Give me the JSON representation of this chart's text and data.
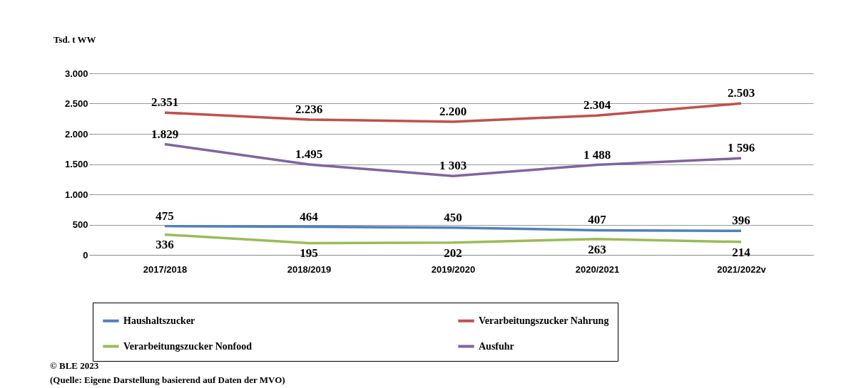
{
  "chart_data": {
    "type": "line",
    "ylabel": "Tsd. t WW",
    "categories": [
      "2017/2018",
      "2018/2019",
      "2019/2020",
      "2020/2021",
      "2021/2022v"
    ],
    "series": [
      {
        "name": "Haushaltszucker",
        "color": "#4f81bd",
        "values": [
          475,
          464,
          450,
          407,
          396
        ],
        "value_labels": [
          "475",
          "464",
          "450",
          "407",
          "396"
        ]
      },
      {
        "name": "Verarbeitungszucker Nahrung",
        "color": "#c0504d",
        "values": [
          2351,
          2236,
          2200,
          2304,
          2503
        ],
        "value_labels": [
          "2.351",
          "2.236",
          "2.200",
          "2.304",
          "2.503"
        ]
      },
      {
        "name": "Verarbeitungszucker Nonfood",
        "color": "#9bbb59",
        "values": [
          336,
          195,
          202,
          263,
          214
        ],
        "value_labels": [
          "336",
          "195",
          "202",
          "263",
          "214"
        ]
      },
      {
        "name": "Ausfuhr",
        "color": "#8064a2",
        "values": [
          1829,
          1495,
          1303,
          1488,
          1596
        ],
        "value_labels": [
          "1.829",
          "1.495",
          "1 303",
          "1 488",
          "1 596"
        ]
      }
    ],
    "ylim": [
      0,
      3000
    ],
    "yticks": [
      {
        "value": 0,
        "label": "0"
      },
      {
        "value": 500,
        "label": "500"
      },
      {
        "value": 1000,
        "label": "1.000"
      },
      {
        "value": 1500,
        "label": "1.500"
      },
      {
        "value": 2000,
        "label": "2.000"
      },
      {
        "value": 2500,
        "label": "2.500"
      },
      {
        "value": 3000,
        "label": "3.000"
      }
    ],
    "grid": "y",
    "legend": "bottom",
    "marker": "none",
    "line_style": "solid",
    "annotations": [
      "© BLE 2023",
      "(Quelle: Eigene Darstellung  basierend auf Daten der MVO)"
    ]
  }
}
